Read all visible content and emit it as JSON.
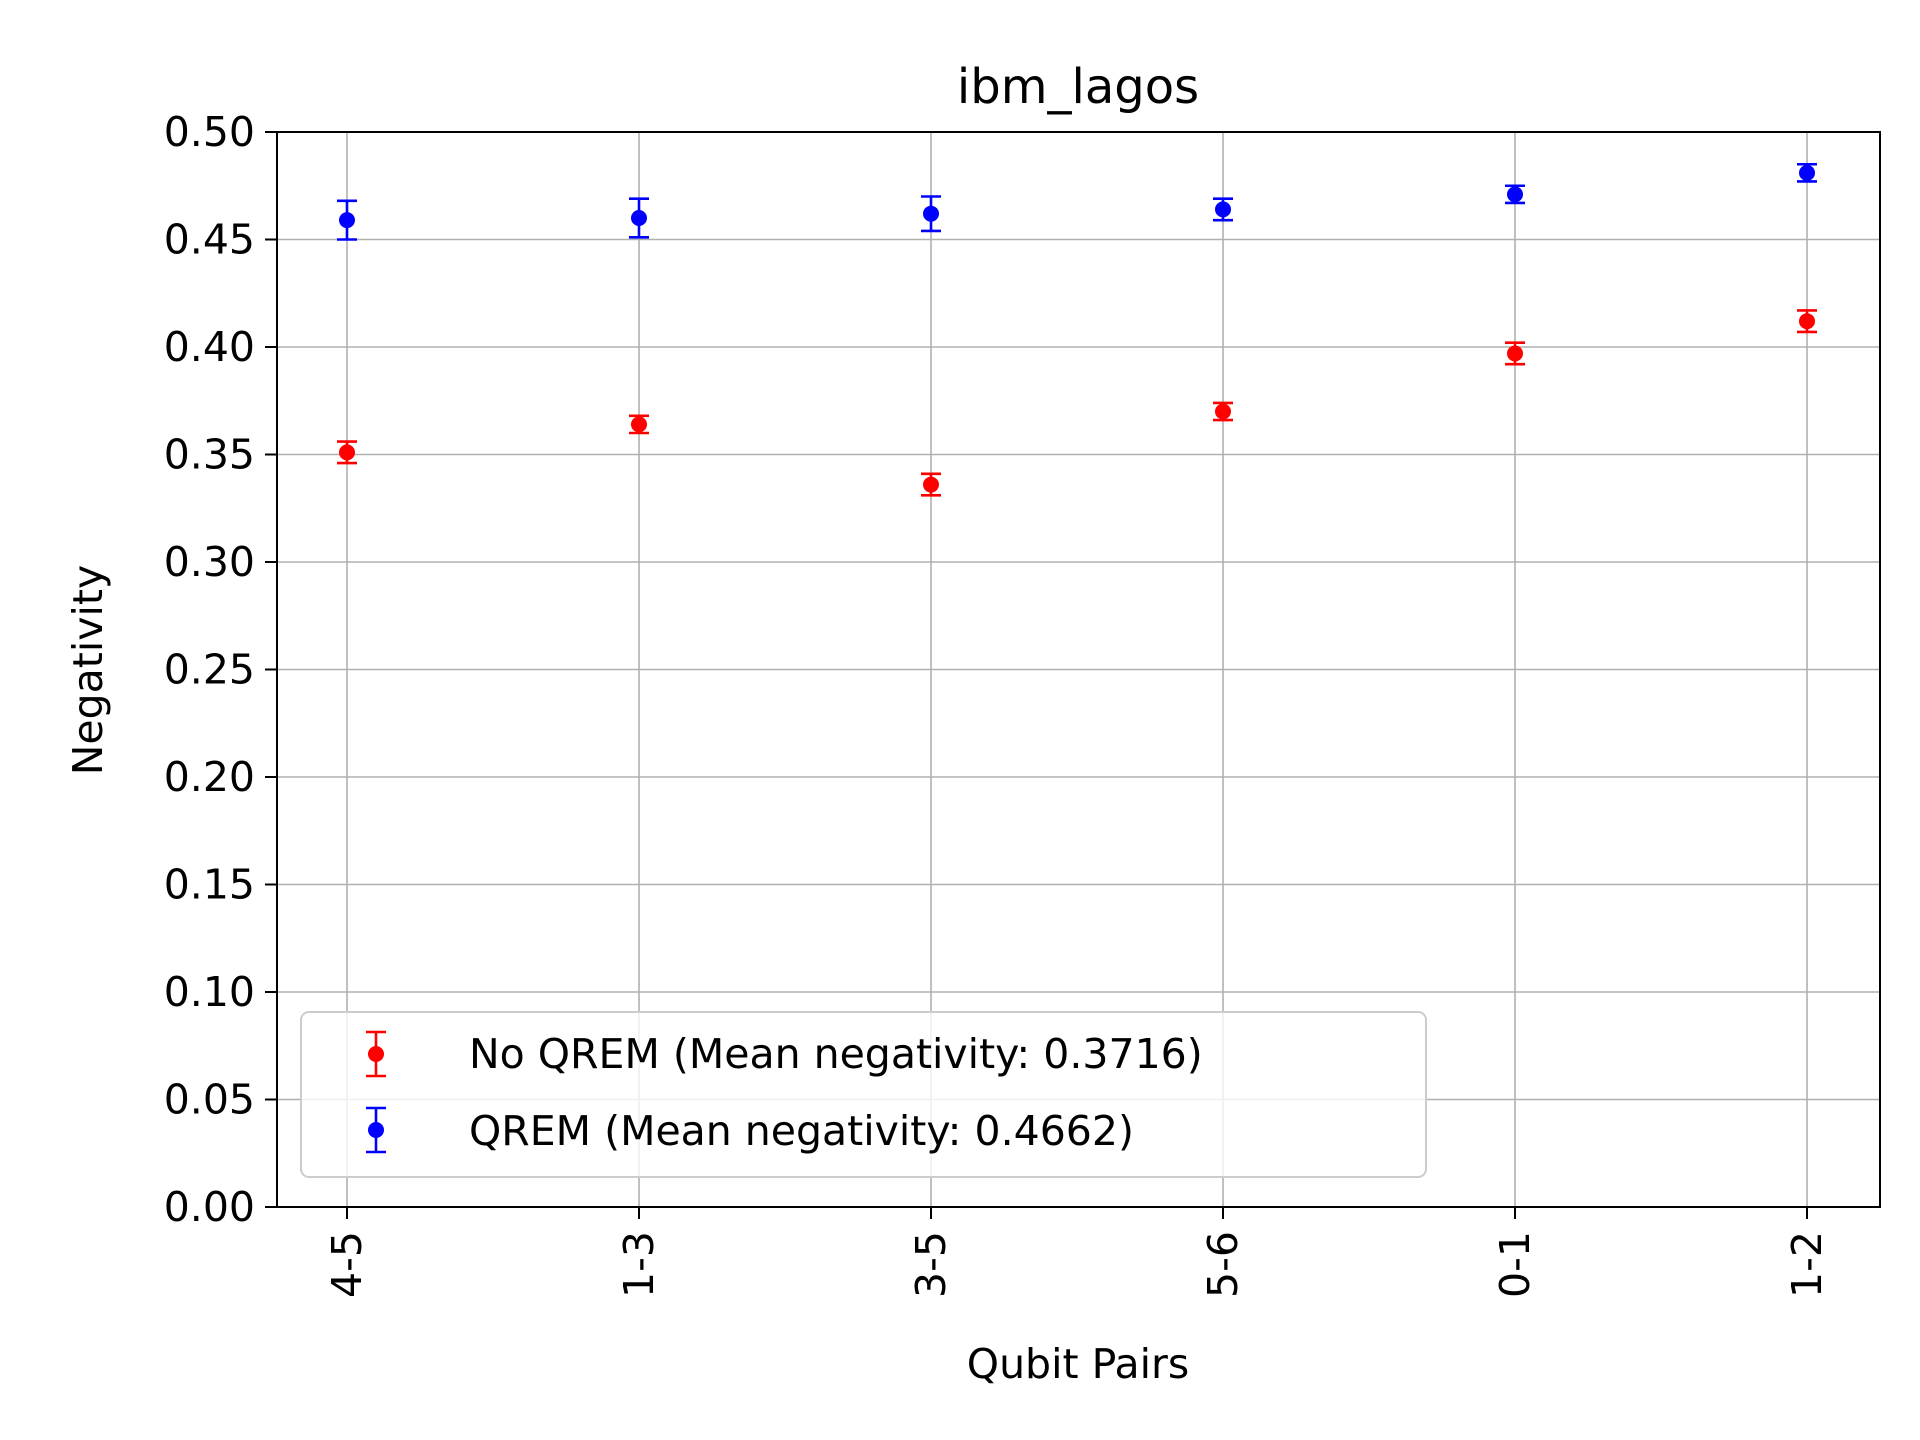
{
  "chart_data": {
    "type": "scatter",
    "title": "ibm_lagos",
    "xlabel": "Qubit Pairs",
    "ylabel": "Negativity",
    "categories": [
      "4-5",
      "1-3",
      "3-5",
      "5-6",
      "0-1",
      "1-2"
    ],
    "ylim": [
      0,
      0.5
    ],
    "yticks": [
      "0.00",
      "0.05",
      "0.10",
      "0.15",
      "0.20",
      "0.25",
      "0.30",
      "0.35",
      "0.40",
      "0.45",
      "0.50"
    ],
    "grid": true,
    "legend_position": "lower-left",
    "series": [
      {
        "name": "No QREM (Mean negativity: 0.3716)",
        "color": "#ff0000",
        "values": [
          0.351,
          0.364,
          0.336,
          0.37,
          0.397,
          0.412
        ],
        "errors": [
          0.005,
          0.004,
          0.005,
          0.004,
          0.005,
          0.005
        ]
      },
      {
        "name": "QREM (Mean negativity: 0.4662)",
        "color": "#0000ff",
        "values": [
          0.459,
          0.46,
          0.462,
          0.464,
          0.471,
          0.481
        ],
        "errors": [
          0.009,
          0.009,
          0.008,
          0.005,
          0.004,
          0.004
        ]
      }
    ]
  }
}
